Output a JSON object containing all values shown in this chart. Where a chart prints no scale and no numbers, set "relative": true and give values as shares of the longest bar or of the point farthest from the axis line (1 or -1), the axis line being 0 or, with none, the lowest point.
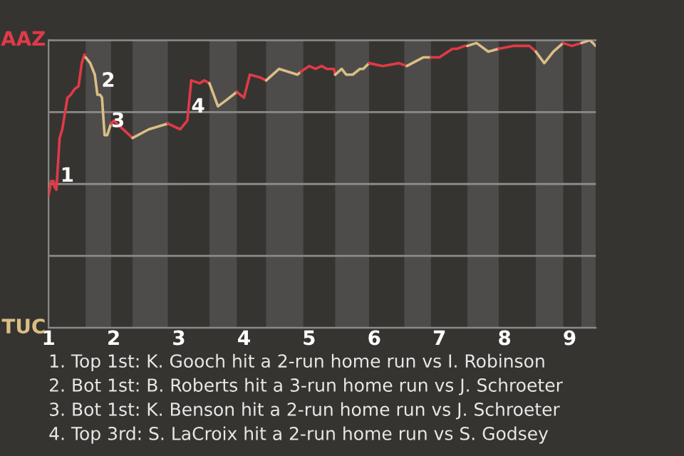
{
  "chart_data": {
    "type": "line",
    "relative": true,
    "series": [
      {
        "color": "#e03a48",
        "x": [
          1.0,
          1.04,
          1.08,
          1.09,
          1.12,
          1.17,
          1.21,
          1.29,
          1.34,
          1.4,
          1.46,
          1.51,
          1.55,
          1.57
        ],
        "values": [
          0.46,
          0.51,
          0.51,
          0.49,
          0.48,
          0.66,
          0.69,
          0.8,
          0.81,
          0.83,
          0.84,
          0.92,
          0.95,
          0.94
        ]
      },
      {
        "color": "#d9be86",
        "x": [
          1.57,
          1.64,
          1.71,
          1.75,
          1.79,
          1.82,
          1.86,
          1.9,
          1.93,
          1.96
        ],
        "values": [
          0.94,
          0.92,
          0.88,
          0.81,
          0.81,
          0.8,
          0.67,
          0.67,
          0.69,
          0.71
        ]
      },
      {
        "color": "#e03a48",
        "x": [
          1.96,
          2.0,
          2.29
        ],
        "values": [
          0.71,
          0.72,
          0.66
        ]
      },
      {
        "color": "#d9be86",
        "x": [
          2.29,
          2.54,
          2.83
        ],
        "values": [
          0.66,
          0.69,
          0.71
        ]
      },
      {
        "color": "#e03a48",
        "x": [
          2.83,
          3.02,
          3.13,
          3.19,
          3.32,
          3.39,
          3.47
        ],
        "values": [
          0.71,
          0.69,
          0.72,
          0.86,
          0.85,
          0.86,
          0.85
        ]
      },
      {
        "color": "#d9be86",
        "x": [
          3.47,
          3.6,
          3.72,
          3.89
        ],
        "values": [
          0.85,
          0.77,
          0.79,
          0.82
        ]
      },
      {
        "color": "#e03a48",
        "x": [
          3.89,
          4.0,
          4.09,
          4.25,
          4.34
        ],
        "values": [
          0.82,
          0.8,
          0.88,
          0.87,
          0.86
        ]
      },
      {
        "color": "#d9be86",
        "x": [
          4.34,
          4.54,
          4.82,
          4.87
        ],
        "values": [
          0.86,
          0.9,
          0.88,
          0.89
        ]
      },
      {
        "color": "#e03a48",
        "x": [
          4.87,
          5.0,
          5.1,
          5.19,
          5.27,
          5.38,
          5.4
        ],
        "values": [
          0.89,
          0.91,
          0.9,
          0.91,
          0.9,
          0.9,
          0.88
        ]
      },
      {
        "color": "#d9be86",
        "x": [
          5.4,
          5.5,
          5.57,
          5.67,
          5.78,
          5.83,
          5.92
        ],
        "values": [
          0.88,
          0.9,
          0.88,
          0.88,
          0.9,
          0.9,
          0.92
        ]
      },
      {
        "color": "#e03a48",
        "x": [
          5.92,
          6.13,
          6.38,
          6.5
        ],
        "values": [
          0.92,
          0.91,
          0.92,
          0.91
        ]
      },
      {
        "color": "#d9be86",
        "x": [
          6.5,
          6.75,
          6.87
        ],
        "values": [
          0.91,
          0.94,
          0.94
        ]
      },
      {
        "color": "#e03a48",
        "x": [
          6.87,
          7.0,
          7.2,
          7.27,
          7.39,
          7.43
        ],
        "values": [
          0.94,
          0.94,
          0.97,
          0.97,
          0.98,
          0.98
        ]
      },
      {
        "color": "#d9be86",
        "x": [
          7.43,
          7.57,
          7.75,
          7.91
        ],
        "values": [
          0.98,
          0.99,
          0.96,
          0.97
        ]
      },
      {
        "color": "#e03a48",
        "x": [
          7.91,
          8.13,
          8.38,
          8.48
        ],
        "values": [
          0.97,
          0.98,
          0.98,
          0.96
        ]
      },
      {
        "color": "#d9be86",
        "x": [
          8.48,
          8.61,
          8.75,
          8.9
        ],
        "values": [
          0.96,
          0.92,
          0.96,
          0.99
        ]
      },
      {
        "color": "#e03a48",
        "x": [
          8.9,
          9.03,
          9.18
        ],
        "values": [
          0.99,
          0.98,
          0.99
        ]
      },
      {
        "color": "#d9be86",
        "x": [
          9.18,
          9.31,
          9.4
        ],
        "values": [
          0.99,
          1.0,
          0.98
        ]
      }
    ],
    "xlim": [
      1,
      9.4
    ],
    "xticks": [
      1,
      2,
      3,
      4,
      5,
      6,
      7,
      8,
      9
    ],
    "grid": "y",
    "bands": [
      {
        "axis": "x",
        "from": 1.57,
        "to": 1.96,
        "color": "#4e4c4a"
      },
      {
        "axis": "x",
        "from": 2.29,
        "to": 2.83,
        "color": "#4e4c4a"
      },
      {
        "axis": "x",
        "from": 3.47,
        "to": 3.89,
        "color": "#4e4c4a"
      },
      {
        "axis": "x",
        "from": 4.34,
        "to": 4.91,
        "color": "#4e4c4a"
      },
      {
        "axis": "x",
        "from": 5.4,
        "to": 5.92,
        "color": "#4e4c4a"
      },
      {
        "axis": "x",
        "from": 6.46,
        "to": 6.87,
        "color": "#4e4c4a"
      },
      {
        "axis": "x",
        "from": 7.43,
        "to": 7.91,
        "color": "#4e4c4a"
      },
      {
        "axis": "x",
        "from": 8.48,
        "to": 8.9,
        "color": "#4e4c4a"
      },
      {
        "axis": "x",
        "from": 9.18,
        "to": 9.4,
        "color": "#4e4c4a"
      }
    ],
    "annotations": [
      "AAZ",
      "TUC",
      {
        "text": "1",
        "x": 1.12,
        "y": 0.48
      },
      {
        "text": "2",
        "x": 1.75,
        "y": 0.81
      },
      {
        "text": "3",
        "x": 1.9,
        "y": 0.67
      },
      {
        "text": "4",
        "x": 3.13,
        "y": 0.72
      },
      "1. Top 1st: K. Gooch hit a 2-run home run vs I. Robinson",
      "2. Bot 1st: B. Roberts hit a 3-run home run vs J. Schroeter",
      "3. Bot 1st: K. Benson hit a 2-run home run vs J. Schroeter",
      "4. Top 3rd: S. LaCroix hit a 2-run home run vs S. Godsey"
    ]
  }
}
